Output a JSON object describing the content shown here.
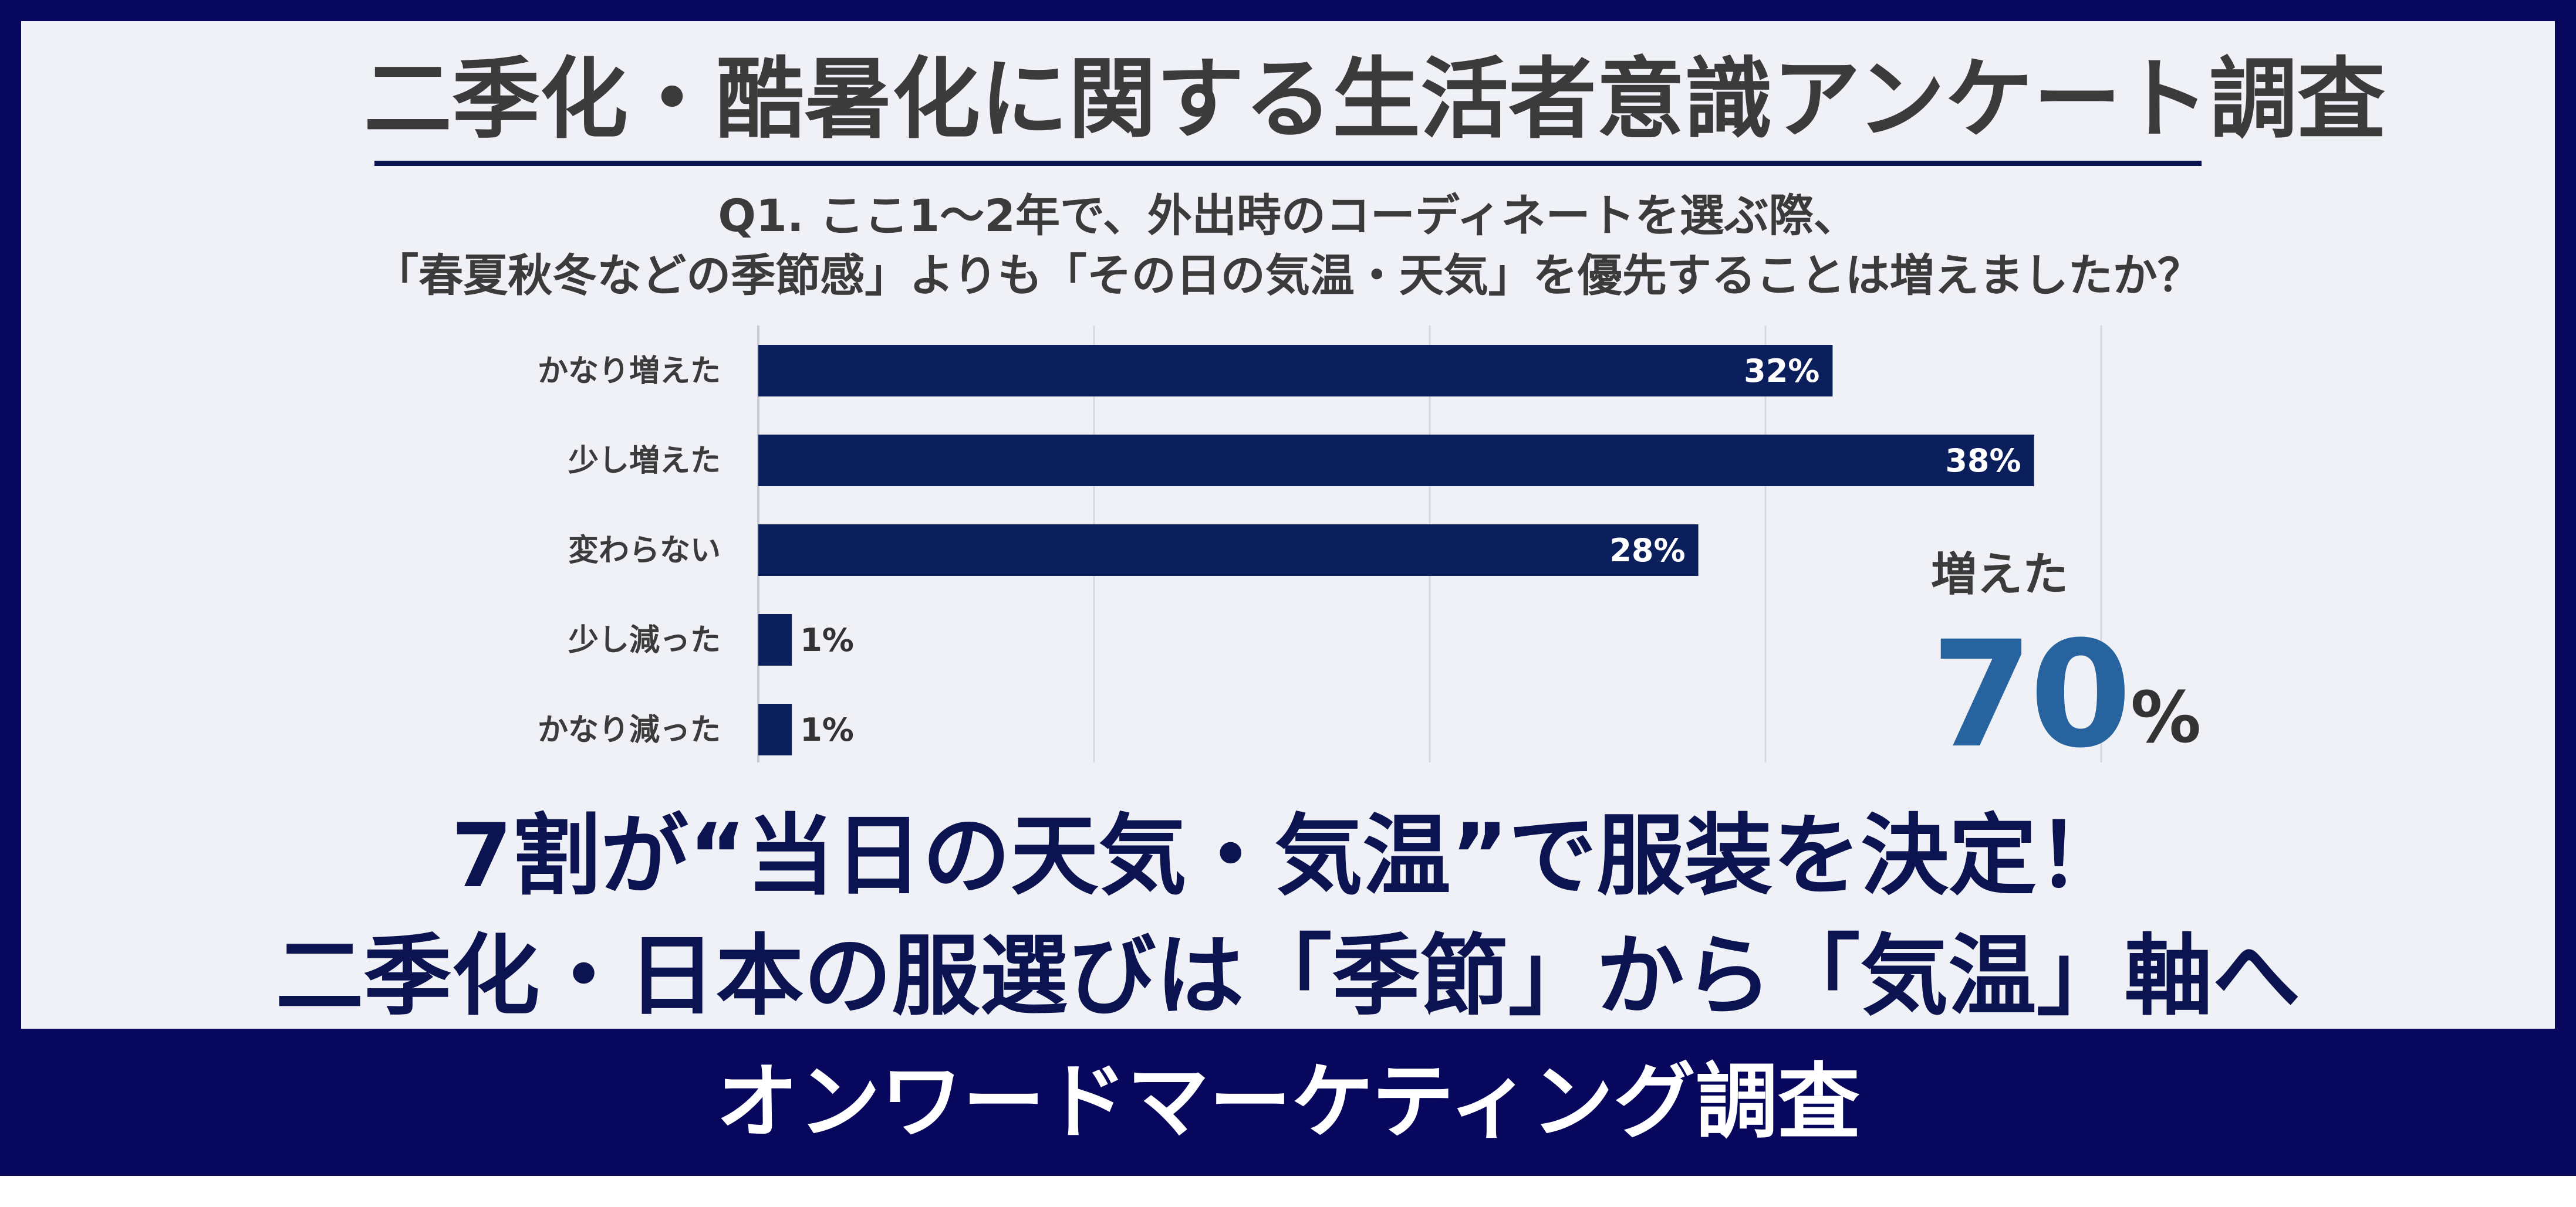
{
  "header": {
    "title": "二季化・酷暑化に関する生活者意識アンケート調査"
  },
  "question": {
    "line1": "Q1. ここ1～2年で、外出時のコーディネートを選ぶ際、",
    "line2": "「春夏秋冬などの季節感」よりも「その日の気温・天気」を優先することは増えましたか？"
  },
  "highlight": {
    "label": "増えた",
    "value": "70",
    "unit": "%"
  },
  "headline": {
    "line1": "7割が“当日の天気・気温”で服装を決定！",
    "line2": "二季化・日本の服選びは「季節」から「気温」軸へ"
  },
  "footer": {
    "text": "オンワードマーケティング調査"
  },
  "colors": {
    "frame": "#07075e",
    "panel": "#eff1f6",
    "bar": "#0b1f5c",
    "accent_value": "#27639e",
    "headline": "#0b1450"
  },
  "chart_data": {
    "type": "bar",
    "orientation": "horizontal",
    "categories": [
      "かなり増えた",
      "少し増えた",
      "変わらない",
      "少し減った",
      "かなり減った"
    ],
    "values": [
      32,
      38,
      28,
      1,
      1
    ],
    "value_labels": [
      "32%",
      "38%",
      "28%",
      "1%",
      "1%"
    ],
    "xlim": [
      0,
      40
    ],
    "grid": true
  }
}
